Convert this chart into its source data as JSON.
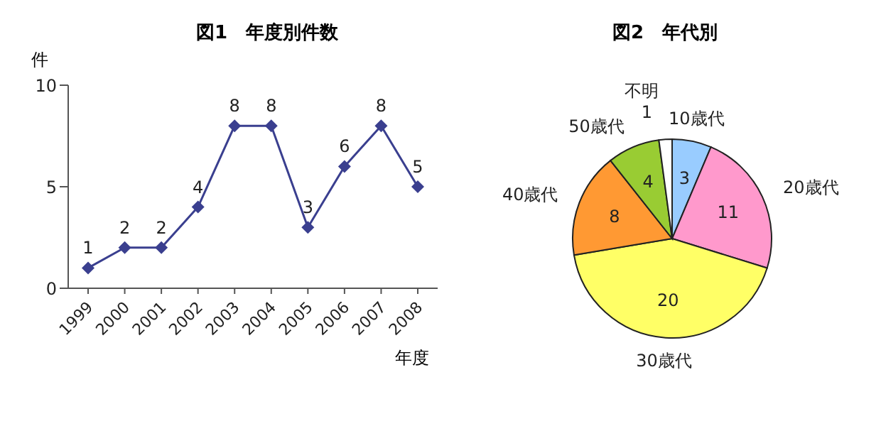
{
  "chart_data": [
    {
      "type": "line",
      "title": "図1　年度別件数",
      "ylabel": "件",
      "xlabel": "年度",
      "categories": [
        "1999",
        "2000",
        "2001",
        "2002",
        "2003",
        "2004",
        "2005",
        "2006",
        "2007",
        "2008"
      ],
      "series": [
        {
          "color": "#3a3f8f",
          "values": [
            1,
            2,
            2,
            4,
            8,
            8,
            3,
            6,
            8,
            5
          ]
        }
      ],
      "ylim": [
        0,
        10
      ],
      "yticks": [
        0,
        5,
        10
      ],
      "grid": false,
      "legend": false,
      "marker": "diamond",
      "line_style": "solid",
      "data_labels": true
    },
    {
      "type": "pie",
      "title": "図2　年代別",
      "categories": [
        "10歳代",
        "20歳代",
        "30歳代",
        "40歳代",
        "50歳代",
        "不明"
      ],
      "values": [
        3,
        11,
        20,
        8,
        4,
        1
      ],
      "colors": [
        "#99ccff",
        "#ff99cc",
        "#ffff66",
        "#ff9933",
        "#99cc33",
        "#ffffff"
      ],
      "data_labels": true,
      "legend": false
    }
  ]
}
